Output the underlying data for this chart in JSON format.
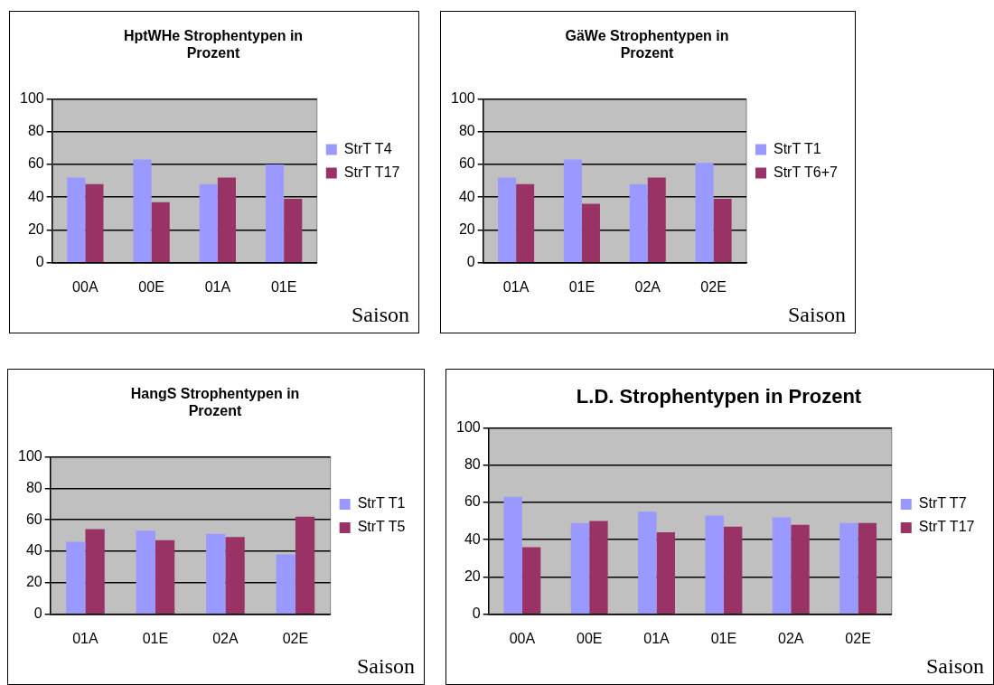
{
  "chart_data": [
    {
      "type": "bar",
      "title": "HptWHe Strophentypen in Prozent",
      "xlabel": "Saison",
      "categories": [
        "00A",
        "00E",
        "01A",
        "01E"
      ],
      "series": [
        {
          "name": "StrT T4",
          "color": "#9999ff",
          "values": [
            52,
            63,
            48,
            60
          ]
        },
        {
          "name": "StrT T17",
          "color": "#993366",
          "values": [
            48,
            37,
            52,
            39
          ]
        }
      ],
      "ylim": [
        0,
        100
      ],
      "yticks": [
        0,
        20,
        40,
        60,
        80,
        100
      ],
      "grid": "y",
      "legend": "right"
    },
    {
      "type": "bar",
      "title": "GäWe Strophentypen in Prozent",
      "xlabel": "Saison",
      "categories": [
        "01A",
        "01E",
        "02A",
        "02E"
      ],
      "series": [
        {
          "name": "StrT T1",
          "color": "#9999ff",
          "values": [
            52,
            63,
            48,
            61
          ]
        },
        {
          "name": "StrT T6+7",
          "color": "#993366",
          "values": [
            48,
            36,
            52,
            39
          ]
        }
      ],
      "ylim": [
        0,
        100
      ],
      "yticks": [
        0,
        20,
        40,
        60,
        80,
        100
      ],
      "grid": "y",
      "legend": "right"
    },
    {
      "type": "bar",
      "title": "HangS Strophentypen in Prozent",
      "xlabel": "Saison",
      "categories": [
        "01A",
        "01E",
        "02A",
        "02E"
      ],
      "series": [
        {
          "name": "StrT T1",
          "color": "#9999ff",
          "values": [
            46,
            53,
            51,
            38
          ]
        },
        {
          "name": "StrT T5",
          "color": "#993366",
          "values": [
            54,
            47,
            49,
            62
          ]
        }
      ],
      "ylim": [
        0,
        100
      ],
      "yticks": [
        0,
        20,
        40,
        60,
        80,
        100
      ],
      "grid": "y",
      "legend": "right"
    },
    {
      "type": "bar",
      "title": "L.D. Strophentypen in Prozent",
      "xlabel": "Saison",
      "categories": [
        "00A",
        "00E",
        "01A",
        "01E",
        "02A",
        "02E"
      ],
      "series": [
        {
          "name": "StrT T7",
          "color": "#9999ff",
          "values": [
            63,
            49,
            55,
            53,
            52,
            49
          ]
        },
        {
          "name": "StrT T17",
          "color": "#993366",
          "values": [
            36,
            50,
            44,
            47,
            48,
            49
          ]
        }
      ],
      "ylim": [
        0,
        100
      ],
      "yticks": [
        0,
        20,
        40,
        60,
        80,
        100
      ],
      "grid": "y",
      "legend": "right"
    }
  ]
}
